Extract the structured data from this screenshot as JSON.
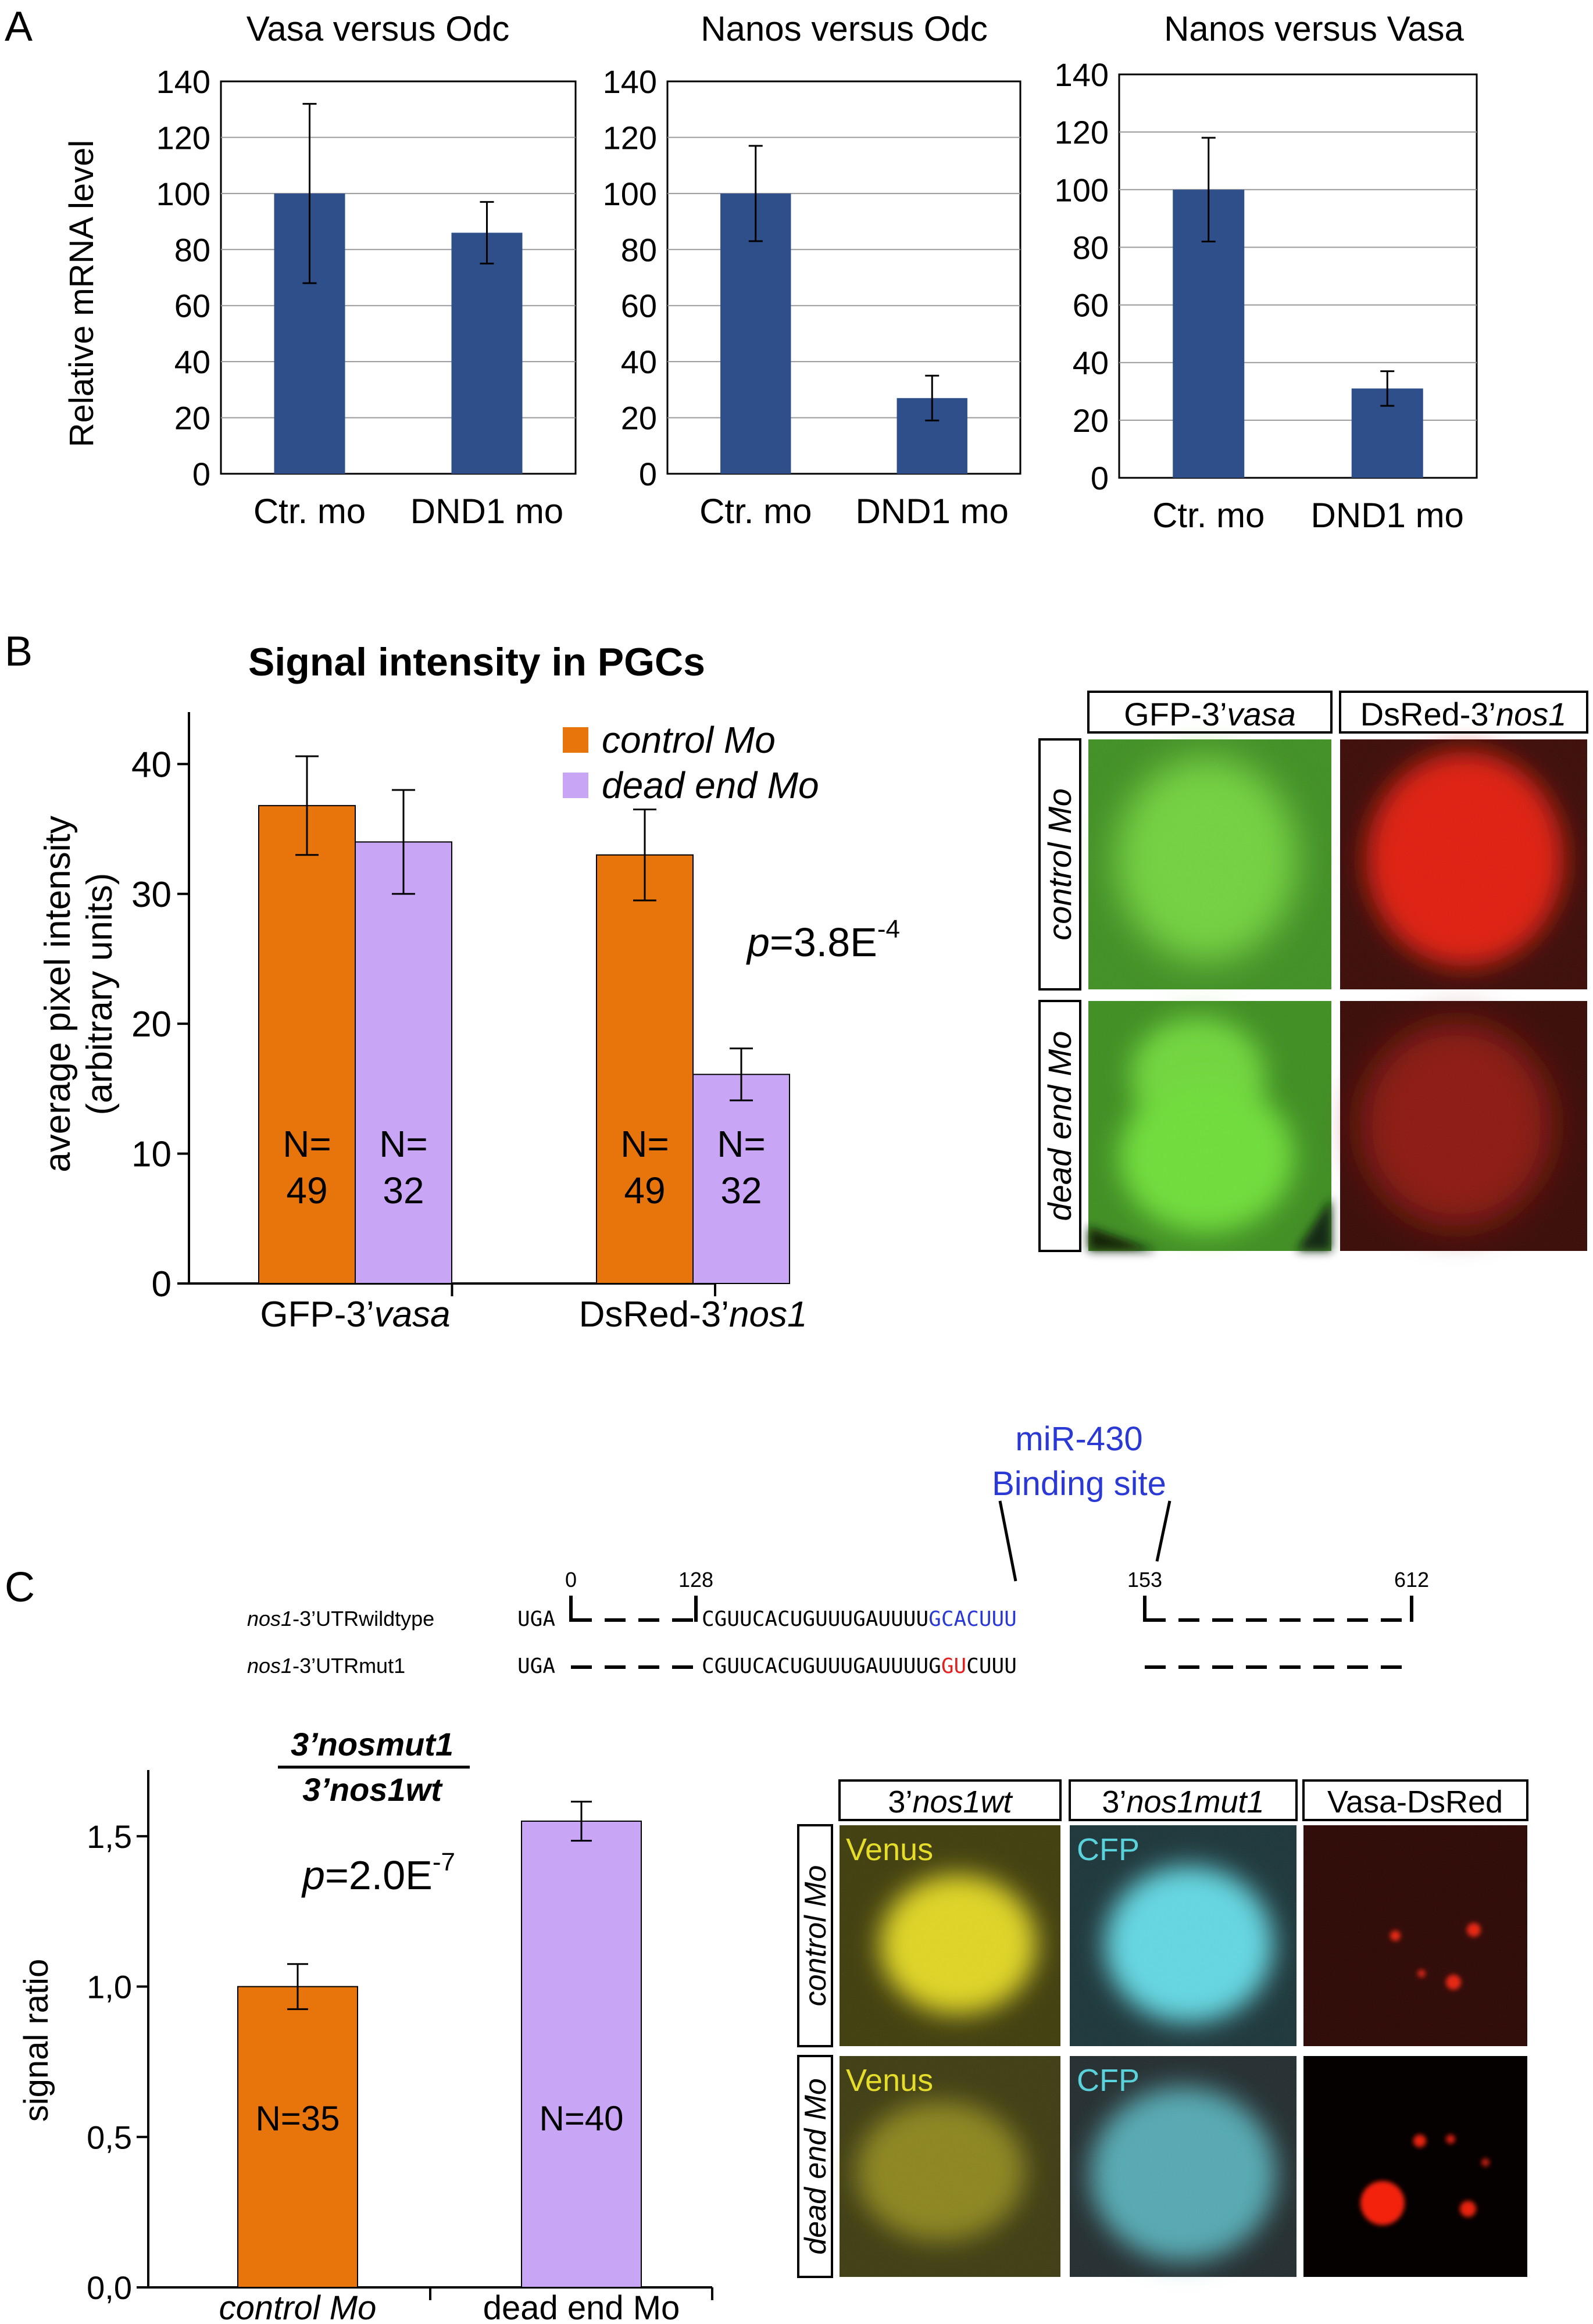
{
  "panel_letters": {
    "a": "A",
    "b": "B",
    "c": "C"
  },
  "chart_data": [
    {
      "id": "a1",
      "type": "bar",
      "title": "Vasa versus Odc",
      "ylabel": "Relative mRNA level",
      "categories": [
        "Ctr. mo",
        "DND1 mo"
      ],
      "values": [
        100,
        86
      ],
      "errors": [
        32,
        11
      ],
      "ylim": [
        0,
        140
      ],
      "yticks": [
        "0",
        "20",
        "40",
        "60",
        "80",
        "100",
        "120",
        "140"
      ],
      "grid": true,
      "colors": [
        "#2f4f8a"
      ]
    },
    {
      "id": "a2",
      "type": "bar",
      "title": "Nanos versus Odc",
      "ylabel": "",
      "categories": [
        "Ctr. mo",
        "DND1 mo"
      ],
      "values": [
        100,
        27
      ],
      "errors": [
        17,
        8
      ],
      "ylim": [
        0,
        140
      ],
      "yticks": [
        "0",
        "20",
        "40",
        "60",
        "80",
        "100",
        "120",
        "140"
      ],
      "grid": true,
      "colors": [
        "#2f4f8a"
      ]
    },
    {
      "id": "a3",
      "type": "bar",
      "title": "Nanos versus Vasa",
      "ylabel": "",
      "categories": [
        "Ctr. mo",
        "DND1 mo"
      ],
      "values": [
        100,
        31
      ],
      "errors": [
        18,
        6
      ],
      "ylim": [
        0,
        140
      ],
      "yticks": [
        "0",
        "20",
        "40",
        "60",
        "80",
        "100",
        "120",
        "140"
      ],
      "grid": true,
      "colors": [
        "#2f4f8a"
      ]
    },
    {
      "id": "b",
      "type": "bar",
      "title": "Signal intensity in PGCs",
      "ylabel_line1": "average pixel intensity",
      "ylabel_line2": "(arbitrary units)",
      "categories": [
        {
          "plain": "GFP-3’",
          "italic": "vasa"
        },
        {
          "plain": "DsRed-3’",
          "italic": "nos1"
        }
      ],
      "series": [
        {
          "name": "control Mo",
          "color": "#e8740c",
          "values": [
            36.8,
            33.0
          ],
          "errors": [
            3.8,
            3.5
          ],
          "n_labels": [
            [
              "N=",
              "49"
            ],
            [
              "N=",
              "49"
            ]
          ]
        },
        {
          "name": "dead end Mo",
          "color": "#c9a5f5",
          "values": [
            34.0,
            16.1
          ],
          "errors": [
            4.0,
            2.0
          ],
          "n_labels": [
            [
              "N=",
              "32"
            ],
            [
              "N=",
              "32"
            ]
          ]
        }
      ],
      "ylim": [
        0,
        44
      ],
      "yticks": [
        "0",
        "10",
        "20",
        "30",
        "40"
      ],
      "pvalue": {
        "p": "p",
        "eq": "=3.8E",
        "exp": "-4"
      },
      "legend_position": "top"
    },
    {
      "id": "c",
      "type": "bar",
      "title_numerator": "3’nosmut1",
      "title_denominator": "3’nos1wt",
      "ylabel": "signal ratio",
      "categories": [
        {
          "label": "control Mo",
          "italic": true
        },
        {
          "label": "dead end Mo",
          "italic": false
        }
      ],
      "values": [
        1.0,
        1.55
      ],
      "errors": [
        0.075,
        0.065
      ],
      "n_labels": [
        "N=35",
        "N=40"
      ],
      "colors": [
        "#e8740c",
        "#c9a5f5"
      ],
      "ylim": [
        0,
        1.72
      ],
      "yticks": [
        {
          "v": 0,
          "t": "0,0"
        },
        {
          "v": 0.5,
          "t": "0,5"
        },
        {
          "v": 1.0,
          "t": "1,0"
        },
        {
          "v": 1.5,
          "t": "1,5"
        }
      ],
      "pvalue": {
        "p": "p",
        "eq": "=2.0E",
        "exp": "-7"
      }
    }
  ],
  "micrographs_b": {
    "col_headers": [
      {
        "plain": "GFP-3’",
        "italic": "vasa"
      },
      {
        "plain": "DsRed-3’",
        "italic": "nos1"
      }
    ],
    "row_labels": [
      "control Mo",
      "dead end Mo"
    ],
    "colors": {
      "green_bg": "#3b8b1e",
      "green_cell": "#6fd43a",
      "red_bg": "#3a0a05",
      "red_cell": "#dd1a08"
    }
  },
  "utr_diagram": {
    "mirna_label_line1": "miR-430",
    "mirna_label_line2": "Binding site",
    "mirna_color": "#2a39d6",
    "positions": [
      "0",
      "128",
      "153",
      "612"
    ],
    "wildtype": {
      "name_italic": "nos1",
      "name_rest": "-3’UTRwildtype",
      "start": "UGA",
      "seq_plain": "CGUUCACUGUUUGAUUUU",
      "seq_site": "GCACUUU"
    },
    "mutant": {
      "name_italic": "nos1",
      "name_rest": "-3’UTRmut1",
      "start": "UGA",
      "seq_plain": "CGUUCACUGUUUGAUUUUG",
      "seq_mut": "GU",
      "seq_end": "CUUU"
    },
    "mutation_color": "#e32020"
  },
  "micrographs_c": {
    "col_headers": [
      {
        "plain": "3’",
        "italic": "nos1wt"
      },
      {
        "plain": "3’",
        "italic": "nos1mut1"
      },
      {
        "plain": "Vasa-DsRed",
        "italic": ""
      }
    ],
    "row_labels": [
      "control Mo",
      "dead end Mo"
    ],
    "channel_labels": [
      "Venus",
      "CFP"
    ],
    "colors": {
      "venus_label": "#e6dc2a",
      "cfp_label": "#59d2dc"
    }
  }
}
